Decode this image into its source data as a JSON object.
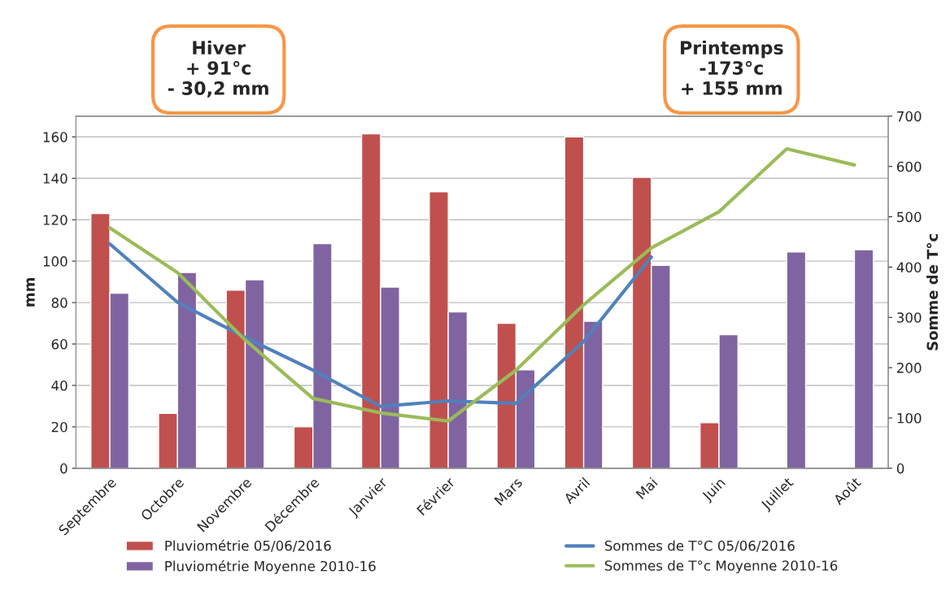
{
  "chart_data": {
    "type": "bar",
    "categories": [
      "Septembre",
      "Octobre",
      "Novembre",
      "Décembre",
      "Janvier",
      "Février",
      "Mars",
      "Avril",
      "Mai",
      "Juin",
      "Juillet",
      "Août"
    ],
    "series": [
      {
        "name": "Pluviométrie 05/06/2016",
        "color": "#c0504d",
        "values": [
          123,
          26.5,
          86,
          20,
          161.5,
          133.5,
          70,
          160,
          140.5,
          22,
          null,
          null
        ]
      },
      {
        "name": "Pluviométrie Moyenne 2010-16",
        "color": "#8064a2",
        "values": [
          84.5,
          94.5,
          91,
          108.5,
          87.5,
          75.5,
          47.5,
          71,
          98,
          64.5,
          104.5,
          105.5
        ]
      },
      {
        "name": "Sommes de T°C 05/06/2016",
        "type": "line",
        "axis": "y2",
        "color": "#4f81bd",
        "values": [
          446,
          330,
          260,
          195,
          123,
          134,
          129,
          252,
          420,
          null,
          null,
          null
        ]
      },
      {
        "name": "Sommes de T°c Moyenne 2010-16",
        "type": "line",
        "axis": "y2",
        "color": "#9bbb59",
        "values": [
          478,
          389,
          255,
          139,
          110,
          94,
          195,
          325,
          438,
          510,
          635,
          603
        ]
      }
    ],
    "ylabel": "mm",
    "y2label": "Somme de T°c",
    "ylim": [
      0,
      170
    ],
    "yticks": [
      0,
      20,
      40,
      60,
      80,
      100,
      120,
      140,
      160
    ],
    "y2lim": [
      0,
      700
    ],
    "y2ticks": [
      0,
      100,
      200,
      300,
      400,
      500,
      600,
      700
    ],
    "annotations": [
      "Hiver\n+ 91°c\n- 30,2 mm",
      "Printemps\n-173°c\n+ 155 mm"
    ],
    "grid": "y",
    "legend": "bottom",
    "marker": "none",
    "line_style": "solid"
  }
}
